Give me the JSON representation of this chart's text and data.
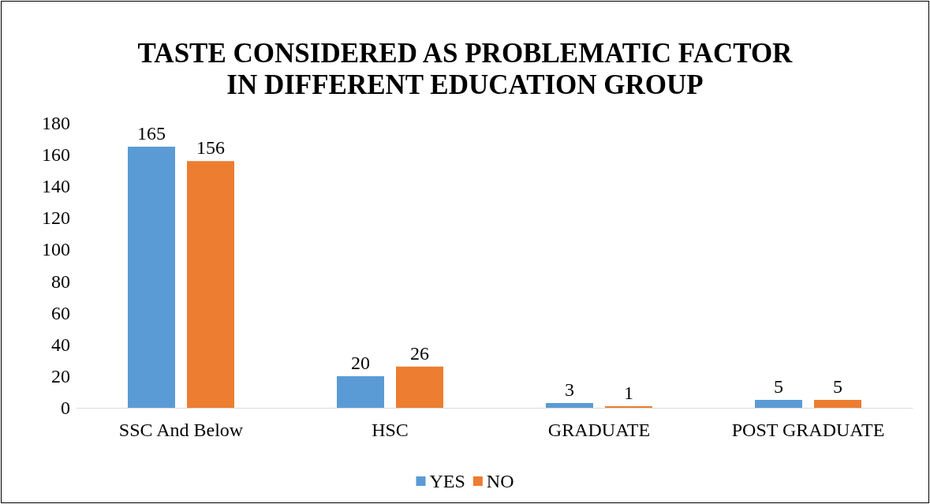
{
  "chart_data": {
    "type": "bar",
    "title": "TASTE CONSIDERED AS PROBLEMATIC FACTOR\nIN DIFFERENT EDUCATION GROUP",
    "categories": [
      "SSC And Below",
      "HSC",
      "GRADUATE",
      "POST GRADUATE"
    ],
    "series": [
      {
        "name": "YES",
        "color": "#5b9bd5",
        "values": [
          165,
          20,
          3,
          5
        ]
      },
      {
        "name": "NO",
        "color": "#ed7d31",
        "values": [
          156,
          26,
          1,
          5
        ]
      }
    ],
    "ylim": [
      0,
      180
    ],
    "yticks": [
      0,
      20,
      40,
      60,
      80,
      100,
      120,
      140,
      160,
      180
    ],
    "grid": false,
    "legend": "bottom",
    "data_labels": true
  }
}
